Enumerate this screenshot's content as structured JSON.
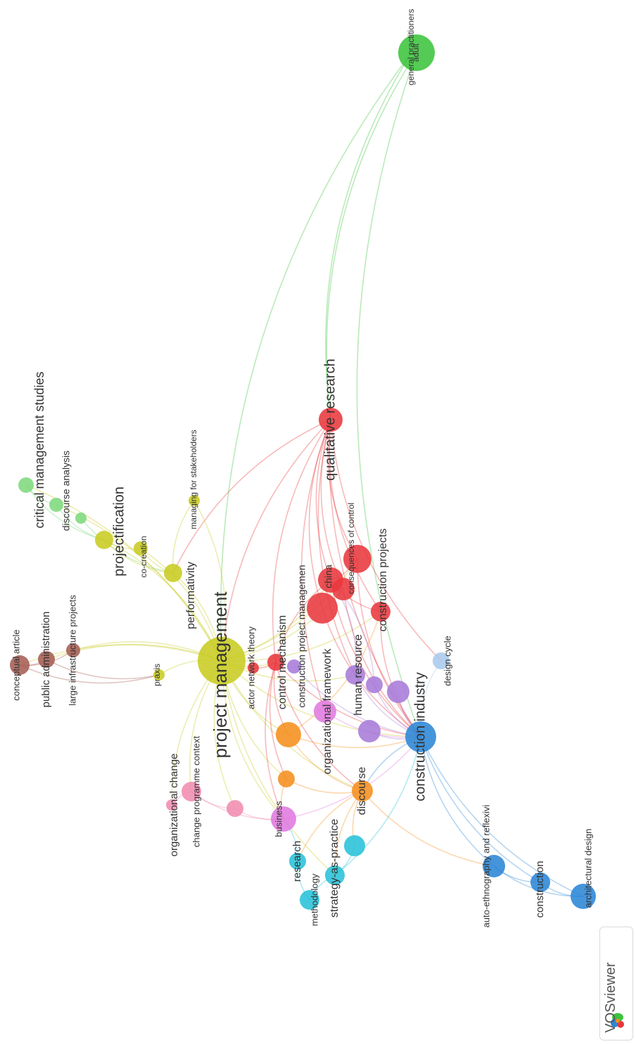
{
  "app": {
    "logo_text": "VOSviewer"
  },
  "clusters": {
    "red": "#e8383d",
    "green": "#3cc43c",
    "blue": "#2b86d6",
    "yellow": "#c8cc22",
    "purple": "#a77bd9",
    "cyan": "#29c1d8",
    "orange": "#f5901e",
    "brown": "#a55d53",
    "pink": "#f08cb0",
    "magenta": "#e07ae0",
    "lightblue": "#a9c9ec",
    "lightgreen": "#7ed97e"
  },
  "nodes": [
    {
      "id": "general_practitioners",
      "label": "general practitioners",
      "cluster": "green"
    },
    {
      "id": "adult",
      "label": "adult",
      "cluster": "green"
    },
    {
      "id": "qualitative_research",
      "label": "qualitative research",
      "cluster": "red"
    },
    {
      "id": "critical_management_studies",
      "label": "critical management studies",
      "cluster": "lightgreen"
    },
    {
      "id": "discourse_analysis",
      "label": "discourse analysis",
      "cluster": "lightgreen"
    },
    {
      "id": "managing_for_stakeholders",
      "label": "managing for stakeholders",
      "cluster": "yellow"
    },
    {
      "id": "projectification",
      "label": "projectification",
      "cluster": "yellow"
    },
    {
      "id": "co_creation",
      "label": "co-creation",
      "cluster": "yellow"
    },
    {
      "id": "performativity",
      "label": "performativity",
      "cluster": "yellow"
    },
    {
      "id": "project_management",
      "label": "project management",
      "cluster": "yellow"
    },
    {
      "id": "praxis",
      "label": "praxis",
      "cluster": "yellow"
    },
    {
      "id": "consequences_of_control",
      "label": "consequences of control",
      "cluster": "red"
    },
    {
      "id": "china",
      "label": "china",
      "cluster": "red"
    },
    {
      "id": "construction_projects",
      "label": "construction projects",
      "cluster": "red"
    },
    {
      "id": "construction_project_managemen",
      "label": "construction project managemen",
      "cluster": "red"
    },
    {
      "id": "control_mechanism",
      "label": "control mechanism",
      "cluster": "red"
    },
    {
      "id": "actor_network_theory",
      "label": "actor network theory",
      "cluster": "red"
    },
    {
      "id": "conceptual_article",
      "label": "conceptual article",
      "cluster": "brown"
    },
    {
      "id": "public_administration",
      "label": "public administration",
      "cluster": "brown"
    },
    {
      "id": "large_infrastructure_projects",
      "label": "large infrastructure projects",
      "cluster": "brown"
    },
    {
      "id": "design_cycle",
      "label": "design cycle",
      "cluster": "lightblue"
    },
    {
      "id": "construction_industry",
      "label": "construction industry",
      "cluster": "blue"
    },
    {
      "id": "human_resource",
      "label": "human resource",
      "cluster": "purple"
    },
    {
      "id": "organizational_framework",
      "label": "organizational framework",
      "cluster": "magenta"
    },
    {
      "id": "organizational_change",
      "label": "organizational change",
      "cluster": "pink"
    },
    {
      "id": "change_programme_context",
      "label": "change programme context",
      "cluster": "pink"
    },
    {
      "id": "business",
      "label": "business",
      "cluster": "magenta"
    },
    {
      "id": "discourse",
      "label": "discourse",
      "cluster": "orange"
    },
    {
      "id": "research",
      "label": "research",
      "cluster": "cyan"
    },
    {
      "id": "methodology",
      "label": "methodology",
      "cluster": "cyan"
    },
    {
      "id": "strategy_as_practice",
      "label": "strategy-as-practice",
      "cluster": "cyan"
    },
    {
      "id": "auto_ethnography",
      "label": "auto-ethnography and reflexivi",
      "cluster": "blue"
    },
    {
      "id": "construction",
      "label": "construction",
      "cluster": "blue"
    },
    {
      "id": "architectural_design",
      "label": "architectural design",
      "cluster": "blue"
    }
  ],
  "extra_nodes": [
    {
      "id": "orange1",
      "cluster": "orange"
    },
    {
      "id": "orange2",
      "cluster": "orange"
    },
    {
      "id": "purple1",
      "cluster": "purple"
    },
    {
      "id": "purple2",
      "cluster": "purple"
    },
    {
      "id": "purple3",
      "cluster": "purple"
    },
    {
      "id": "purple4",
      "cluster": "purple"
    },
    {
      "id": "pink1",
      "cluster": "pink"
    },
    {
      "id": "cyan1",
      "cluster": "cyan"
    },
    {
      "id": "green_small1",
      "cluster": "lightgreen"
    },
    {
      "id": "red_big2",
      "cluster": "red"
    }
  ],
  "edges": [
    [
      "adult",
      "qualitative_research"
    ],
    [
      "general_practitioners",
      "qualitative_research"
    ],
    [
      "adult",
      "construction_industry"
    ],
    [
      "general_practitioners",
      "project_management"
    ],
    [
      "qualitative_research",
      "project_management"
    ],
    [
      "qualitative_research",
      "china"
    ],
    [
      "qualitative_research",
      "consequences_of_control"
    ],
    [
      "qualitative_research",
      "construction_projects"
    ],
    [
      "qualitative_research",
      "construction_industry"
    ],
    [
      "qualitative_research",
      "control_mechanism"
    ],
    [
      "qualitative_research",
      "construction_project_managemen"
    ],
    [
      "qualitative_research",
      "human_resource"
    ],
    [
      "qualitative_research",
      "red_big2"
    ],
    [
      "qualitative_research",
      "performativity"
    ],
    [
      "qualitative_research",
      "design_cycle"
    ],
    [
      "qualitative_research",
      "organizational_framework"
    ],
    [
      "project_management",
      "performativity"
    ],
    [
      "project_management",
      "projectification"
    ],
    [
      "project_management",
      "co_creation"
    ],
    [
      "project_management",
      "managing_for_stakeholders"
    ],
    [
      "project_management",
      "critical_management_studies"
    ],
    [
      "project_management",
      "discourse_analysis"
    ],
    [
      "project_management",
      "public_administration"
    ],
    [
      "project_management",
      "conceptual_article"
    ],
    [
      "project_management",
      "large_infrastructure_projects"
    ],
    [
      "project_management",
      "praxis"
    ],
    [
      "project_management",
      "china"
    ],
    [
      "project_management",
      "construction_projects"
    ],
    [
      "project_management",
      "control_mechanism"
    ],
    [
      "project_management",
      "construction_industry"
    ],
    [
      "project_management",
      "orange1"
    ],
    [
      "project_management",
      "orange2"
    ],
    [
      "project_management",
      "change_programme_context"
    ],
    [
      "project_management",
      "organizational_change"
    ],
    [
      "project_management",
      "business"
    ],
    [
      "project_management",
      "discourse"
    ],
    [
      "project_management",
      "strategy_as_practice"
    ],
    [
      "project_management",
      "pink1"
    ],
    [
      "project_management",
      "red_big2"
    ],
    [
      "project_management",
      "human_resource"
    ],
    [
      "project_management",
      "consequences_of_control"
    ],
    [
      "project_management",
      "actor_network_theory"
    ],
    [
      "conceptual_article",
      "public_administration"
    ],
    [
      "conceptual_article",
      "large_infrastructure_projects"
    ],
    [
      "public_administration",
      "praxis"
    ],
    [
      "conceptual_article",
      "praxis"
    ],
    [
      "critical_management_studies",
      "discourse_analysis"
    ],
    [
      "critical_management_studies",
      "projectification"
    ],
    [
      "discourse_analysis",
      "projectification"
    ],
    [
      "green_small1",
      "performativity"
    ],
    [
      "projectification",
      "co_creation"
    ],
    [
      "projectification",
      "performativity"
    ],
    [
      "co_creation",
      "performativity"
    ],
    [
      "managing_for_stakeholders",
      "performativity"
    ],
    [
      "china",
      "construction_projects"
    ],
    [
      "china",
      "consequences_of_control"
    ],
    [
      "china",
      "control_mechanism"
    ],
    [
      "china",
      "construction_industry"
    ],
    [
      "china",
      "red_big2"
    ],
    [
      "red_big2",
      "construction_industry"
    ],
    [
      "consequences_of_control",
      "construction_industry"
    ],
    [
      "construction_projects",
      "construction_industry"
    ],
    [
      "construction_project_managemen",
      "construction_industry"
    ],
    [
      "control_mechanism",
      "construction_industry"
    ],
    [
      "control_mechanism",
      "orange1"
    ],
    [
      "control_mechanism",
      "orange2"
    ],
    [
      "control_mechanism",
      "discourse"
    ],
    [
      "control_mechanism",
      "business"
    ],
    [
      "orange1",
      "discourse"
    ],
    [
      "orange1",
      "construction_industry"
    ],
    [
      "orange2",
      "discourse"
    ],
    [
      "orange2",
      "business"
    ],
    [
      "human_resource",
      "construction_industry"
    ],
    [
      "purple1",
      "construction_industry"
    ],
    [
      "purple2",
      "construction_industry"
    ],
    [
      "purple3",
      "construction_industry"
    ],
    [
      "purple4",
      "construction_industry"
    ],
    [
      "organizational_framework",
      "construction_industry"
    ],
    [
      "design_cycle",
      "construction_industry"
    ],
    [
      "construction_industry",
      "discourse"
    ],
    [
      "construction_industry",
      "auto_ethnography"
    ],
    [
      "construction_industry",
      "construction"
    ],
    [
      "construction_industry",
      "architectural_design"
    ],
    [
      "auto_ethnography",
      "construction"
    ],
    [
      "auto_ethnography",
      "architectural_design"
    ],
    [
      "construction",
      "architectural_design"
    ],
    [
      "discourse",
      "strategy_as_practice"
    ],
    [
      "discourse",
      "cyan1"
    ],
    [
      "discourse",
      "research"
    ],
    [
      "strategy_as_practice",
      "methodology"
    ],
    [
      "strategy_as_practice",
      "cyan1"
    ],
    [
      "research",
      "methodology"
    ],
    [
      "research",
      "business"
    ],
    [
      "change_programme_context",
      "organizational_change"
    ],
    [
      "change_programme_context",
      "pink1"
    ],
    [
      "change_programme_context",
      "business"
    ],
    [
      "pink1",
      "business"
    ],
    [
      "discourse",
      "auto_ethnography"
    ],
    [
      "business",
      "construction_industry"
    ],
    [
      "strategy_as_practice",
      "construction_industry"
    ],
    [
      "orange1",
      "construction_projects"
    ],
    [
      "actor_network_theory",
      "control_mechanism"
    ],
    [
      "human_resource",
      "china"
    ],
    [
      "purple1",
      "china"
    ]
  ]
}
